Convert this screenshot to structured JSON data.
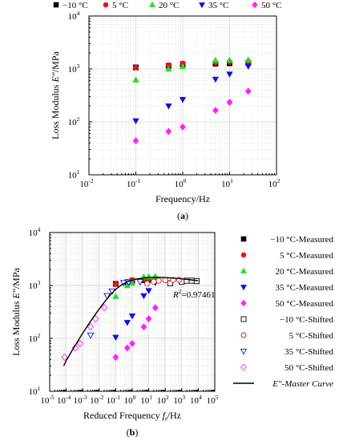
{
  "chart_data": [
    {
      "type": "scatter",
      "panel_label": "(a)",
      "xlabel": "Frequency/Hz",
      "ylabel_prefix": "Loss Modulus ",
      "ylabel_var": "E\"",
      "ylabel_suffix": "/MPa",
      "xscale": "log",
      "yscale": "log",
      "xlim": [
        0.01,
        100
      ],
      "ylim": [
        10,
        10000
      ],
      "xticks": [
        {
          "base": "10",
          "exp": "-2"
        },
        {
          "base": "10",
          "exp": "-1"
        },
        {
          "base": "10",
          "exp": "0"
        },
        {
          "base": "10",
          "exp": "1"
        },
        {
          "base": "10",
          "exp": "2"
        }
      ],
      "yticks": [
        {
          "base": "10",
          "exp": "1"
        },
        {
          "base": "10",
          "exp": "2"
        },
        {
          "base": "10",
          "exp": "3"
        },
        {
          "base": "10",
          "exp": "4"
        }
      ],
      "grid": true,
      "legend_placement": "top",
      "series": [
        {
          "name": "−10 °C",
          "marker": "square",
          "filled": true,
          "color": "#000000",
          "x": [
            0.1,
            0.5,
            1,
            5,
            10,
            25
          ],
          "y": [
            1070,
            1150,
            1230,
            1260,
            1280,
            1300
          ]
        },
        {
          "name": "5 °C",
          "marker": "circle",
          "filled": true,
          "color": "#e8141b",
          "x": [
            0.1,
            0.5,
            1,
            5,
            10,
            25
          ],
          "y": [
            1060,
            1180,
            1270,
            1320,
            1350,
            1380
          ]
        },
        {
          "name": "20 °C",
          "marker": "triangle-up",
          "filled": true,
          "color": "#22dd22",
          "x": [
            0.1,
            0.5,
            1,
            5,
            10,
            25
          ],
          "y": [
            620,
            990,
            1100,
            1450,
            1460,
            1480
          ]
        },
        {
          "name": "35 °C",
          "marker": "triangle-down",
          "filled": true,
          "color": "#1010e0",
          "x": [
            0.1,
            0.5,
            1,
            5,
            10,
            25
          ],
          "y": [
            105,
            200,
            265,
            640,
            800,
            1130
          ]
        },
        {
          "name": "50 °C",
          "marker": "diamond",
          "filled": true,
          "color": "#ff22ff",
          "x": [
            0.1,
            0.5,
            1,
            5,
            10,
            25
          ],
          "y": [
            44,
            66,
            80,
            165,
            235,
            380
          ]
        }
      ]
    },
    {
      "type": "scatter",
      "panel_label": "(b)",
      "xlabel_prefix": "Reduced Frequency ",
      "xlabel_var": "f",
      "xlabel_sub": "r",
      "xlabel_suffix": "/Hz",
      "ylabel_prefix": "Loss Modulus ",
      "ylabel_var": "E\"",
      "ylabel_suffix": "/MPa",
      "xscale": "log",
      "yscale": "log",
      "xlim": [
        1e-05,
        100000
      ],
      "ylim": [
        10,
        10000
      ],
      "xticks": [
        {
          "base": "10",
          "exp": "-5"
        },
        {
          "base": "10",
          "exp": "-4"
        },
        {
          "base": "10",
          "exp": "-3"
        },
        {
          "base": "10",
          "exp": "-2"
        },
        {
          "base": "10",
          "exp": "-1"
        },
        {
          "base": "10",
          "exp": "0"
        },
        {
          "base": "10",
          "exp": "1"
        },
        {
          "base": "10",
          "exp": "2"
        },
        {
          "base": "10",
          "exp": "3"
        },
        {
          "base": "10",
          "exp": "4"
        },
        {
          "base": "10",
          "exp": "5"
        }
      ],
      "yticks": [
        {
          "base": "10",
          "exp": "1"
        },
        {
          "base": "10",
          "exp": "2"
        },
        {
          "base": "10",
          "exp": "3"
        },
        {
          "base": "10",
          "exp": "4"
        }
      ],
      "grid": true,
      "legend_placement": "right",
      "annotation": {
        "var": "R",
        "sup": "2",
        "text": "=0.97461",
        "x": 300,
        "y": 590
      },
      "series": [
        {
          "name": "−10 °C-Measured",
          "marker": "square",
          "filled": true,
          "color": "#000000",
          "x": [
            0.1,
            0.5,
            1,
            5,
            10,
            25
          ],
          "y": [
            1070,
            1150,
            1230,
            1260,
            1280,
            1300
          ]
        },
        {
          "name": "5 °C-Measured",
          "marker": "circle",
          "filled": true,
          "color": "#e8141b",
          "x": [
            0.1,
            0.5,
            1,
            5,
            10,
            25
          ],
          "y": [
            1060,
            1180,
            1270,
            1320,
            1350,
            1380
          ]
        },
        {
          "name": "20 °C-Measured",
          "marker": "triangle-up",
          "filled": true,
          "color": "#22dd22",
          "x": [
            0.1,
            0.5,
            1,
            5,
            10,
            25
          ],
          "y": [
            620,
            990,
            1100,
            1450,
            1460,
            1480
          ]
        },
        {
          "name": "35 °C-Measured",
          "marker": "triangle-down",
          "filled": true,
          "color": "#1010e0",
          "x": [
            0.1,
            0.5,
            1,
            5,
            10,
            25
          ],
          "y": [
            105,
            200,
            265,
            640,
            800,
            1130
          ]
        },
        {
          "name": "50 °C-Measured",
          "marker": "diamond",
          "filled": true,
          "color": "#ff22ff",
          "x": [
            0.1,
            0.5,
            1,
            5,
            10,
            25
          ],
          "y": [
            44,
            66,
            80,
            165,
            235,
            380
          ]
        },
        {
          "name": "−10 °C-Shifted",
          "marker": "square",
          "filled": false,
          "color": "#000000",
          "x": [
            200,
            1000,
            2000,
            4000,
            8000
          ],
          "y": [
            1100,
            1180,
            1230,
            1230,
            1210
          ]
        },
        {
          "name": "5 °C-Shifted",
          "marker": "circle",
          "filled": false,
          "color": "#e8141b",
          "x": [
            8,
            20,
            40,
            100,
            300,
            700
          ],
          "y": [
            1090,
            1180,
            1230,
            1260,
            1270,
            1280
          ]
        },
        {
          "name": "35 °C-Shifted",
          "marker": "triangle-down",
          "filled": false,
          "color": "#1010e0",
          "x": [
            0.003,
            0.03,
            0.06,
            0.3,
            0.6,
            3
          ],
          "y": [
            115,
            640,
            780,
            1130,
            1150,
            1180
          ]
        },
        {
          "name": "50 °C-Shifted",
          "marker": "diamond",
          "filled": false,
          "color": "#ff22ff",
          "x": [
            8e-05,
            0.00035,
            0.0007,
            0.003,
            0.006,
            0.02
          ],
          "y": [
            44,
            66,
            80,
            165,
            235,
            380
          ]
        },
        {
          "name": "E\"-Master Curve",
          "marker": "line",
          "color": "#000000",
          "x": [
            7e-05,
            0.0001,
            0.0002,
            0.0005,
            0.001,
            0.002,
            0.005,
            0.01,
            0.02,
            0.05,
            0.1,
            0.2,
            0.5,
            1,
            2,
            5,
            10,
            20,
            50,
            100,
            200,
            500,
            1000,
            2000,
            5000,
            10000
          ],
          "y": [
            30,
            38,
            55,
            88,
            125,
            175,
            265,
            360,
            480,
            680,
            840,
            1000,
            1170,
            1260,
            1330,
            1380,
            1410,
            1420,
            1420,
            1410,
            1390,
            1360,
            1330,
            1300,
            1260,
            1230
          ]
        }
      ]
    }
  ]
}
